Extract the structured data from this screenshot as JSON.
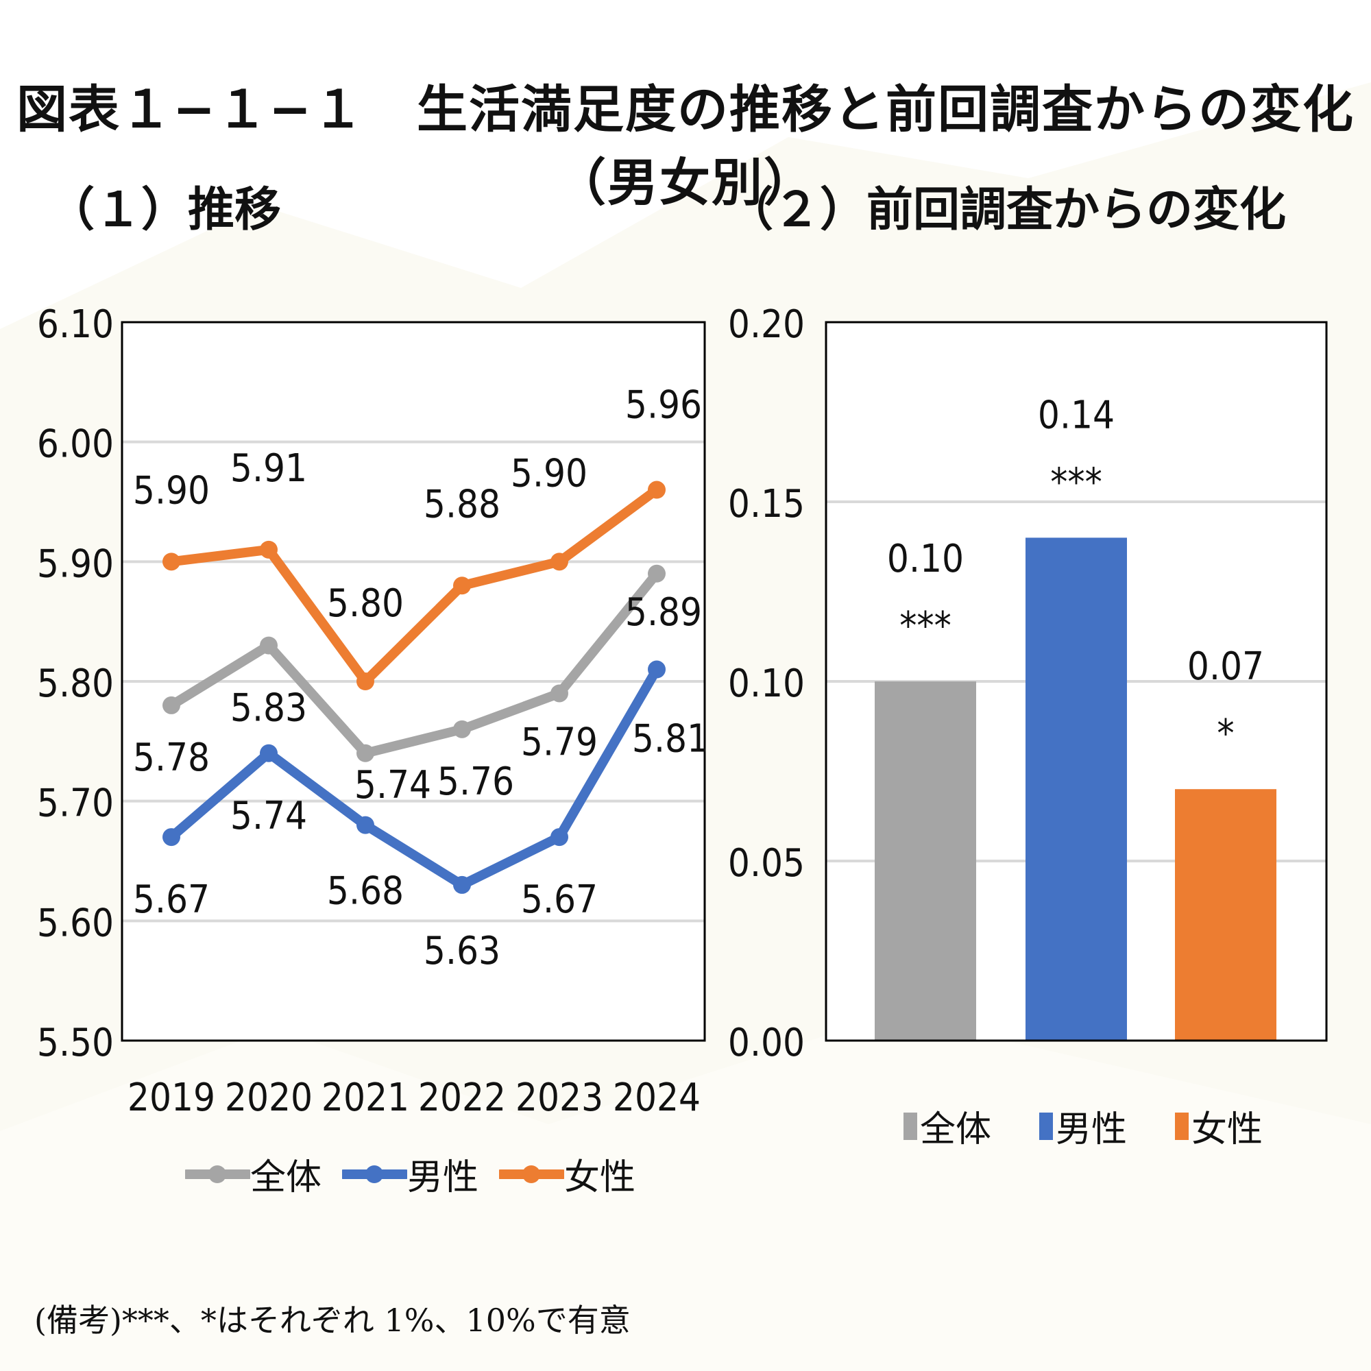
{
  "title": "図表１−１−１　生活満足度の推移と前回調査からの変化（男女別）",
  "subtitle_left": "（１）推移",
  "subtitle_right": "（２）前回調査からの変化",
  "note": "(備考)***、*はそれぞれ 1%、10%で有意",
  "colors": {
    "all": "#A5A5A5",
    "male": "#4472C4",
    "female": "#ED7D31",
    "grid": "#D9D9D9"
  },
  "chart_data": [
    {
      "type": "line",
      "categories": [
        "2019",
        "2020",
        "2021",
        "2022",
        "2023",
        "2024"
      ],
      "ylim": [
        5.5,
        6.1
      ],
      "yticks": [
        "5.50",
        "5.60",
        "5.70",
        "5.80",
        "5.90",
        "6.00",
        "6.10"
      ],
      "grid": true,
      "legend_position": "bottom",
      "series": [
        {
          "name": "全体",
          "color": "#A5A5A5",
          "values": [
            5.78,
            5.83,
            5.74,
            5.76,
            5.79,
            5.89
          ],
          "labels": [
            "5.78",
            "5.83",
            "5.74",
            "5.76",
            "5.79",
            "5.89"
          ]
        },
        {
          "name": "男性",
          "color": "#4472C4",
          "values": [
            5.67,
            5.74,
            5.68,
            5.63,
            5.67,
            5.81
          ],
          "labels": [
            "5.67",
            "5.74",
            "5.68",
            "5.63",
            "5.67",
            "5.81"
          ]
        },
        {
          "name": "女性",
          "color": "#ED7D31",
          "values": [
            5.9,
            5.91,
            5.8,
            5.88,
            5.9,
            5.96
          ],
          "labels": [
            "5.90",
            "5.91",
            "5.80",
            "5.88",
            "5.90",
            "5.96"
          ]
        }
      ]
    },
    {
      "type": "bar",
      "categories": [
        "全体",
        "男性",
        "女性"
      ],
      "values": [
        0.1,
        0.14,
        0.07
      ],
      "labels": [
        "0.10",
        "0.14",
        "0.07"
      ],
      "significance": [
        "***",
        "***",
        "*"
      ],
      "colors": [
        "#A5A5A5",
        "#4472C4",
        "#ED7D31"
      ],
      "ylim": [
        0.0,
        0.2
      ],
      "yticks": [
        "0.00",
        "0.05",
        "0.10",
        "0.15",
        "0.20"
      ],
      "grid": true,
      "legend_position": "bottom"
    }
  ]
}
